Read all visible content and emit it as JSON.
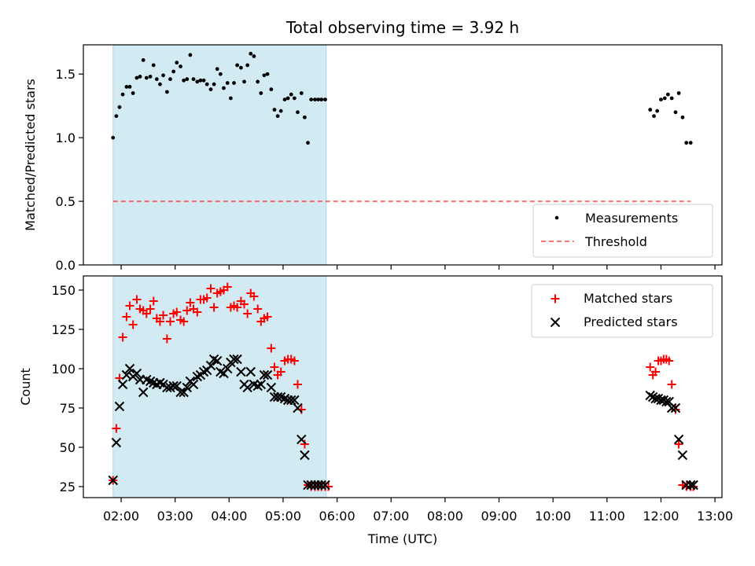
{
  "figure": {
    "title": "Total observing time = 3.92 h",
    "xlabel": "Time (UTC)",
    "x_ticks": [
      "02:00",
      "03:00",
      "04:00",
      "05:00",
      "06:00",
      "07:00",
      "08:00",
      "09:00",
      "10:00",
      "11:00",
      "12:00",
      "13:00"
    ],
    "x_tick_hours": [
      2,
      3,
      4,
      5,
      6,
      7,
      8,
      9,
      10,
      11,
      12,
      13
    ],
    "xlim": [
      1.3,
      13.13
    ],
    "shaded_span": [
      1.85,
      5.8
    ],
    "colors": {
      "shade": "#add8e6",
      "threshold": "#ff0000",
      "matched": "#ff0000",
      "predicted": "#000000",
      "measurements": "#000000"
    }
  },
  "chart_data": [
    {
      "type": "scatter",
      "ylabel": "Matched/Predicted stars",
      "ylim": [
        0,
        1.73
      ],
      "y_ticks": [
        0.0,
        0.5,
        1.0,
        1.5
      ],
      "y_tick_labels": [
        "0.0",
        "0.5",
        "1.0",
        "1.5"
      ],
      "legend_position": "lower right",
      "series": [
        {
          "name": "Measurements",
          "marker": "dot",
          "x": [
            1.85,
            1.91,
            1.97,
            2.03,
            2.1,
            2.16,
            2.22,
            2.29,
            2.35,
            2.41,
            2.47,
            2.54,
            2.6,
            2.66,
            2.72,
            2.78,
            2.85,
            2.91,
            2.97,
            3.03,
            3.1,
            3.16,
            3.22,
            3.28,
            3.34,
            3.41,
            3.47,
            3.53,
            3.59,
            3.66,
            3.72,
            3.78,
            3.84,
            3.9,
            3.97,
            4.03,
            4.09,
            4.15,
            4.22,
            4.28,
            4.34,
            4.4,
            4.46,
            4.53,
            4.59,
            4.65,
            4.71,
            4.78,
            4.84,
            4.9,
            4.96,
            5.03,
            5.09,
            5.15,
            5.21,
            5.27,
            5.34,
            5.4,
            5.46,
            5.52,
            5.59,
            5.65,
            5.71,
            5.78,
            11.8,
            11.87,
            11.93,
            12.0,
            12.07,
            12.13,
            12.2,
            12.27,
            12.33,
            12.4,
            12.47,
            12.55
          ],
          "y": [
            1.0,
            1.17,
            1.24,
            1.34,
            1.4,
            1.4,
            1.35,
            1.47,
            1.48,
            1.61,
            1.47,
            1.48,
            1.57,
            1.46,
            1.42,
            1.49,
            1.36,
            1.46,
            1.52,
            1.59,
            1.56,
            1.45,
            1.46,
            1.65,
            1.46,
            1.44,
            1.45,
            1.45,
            1.42,
            1.38,
            1.42,
            1.54,
            1.5,
            1.39,
            1.43,
            1.31,
            1.43,
            1.57,
            1.55,
            1.44,
            1.57,
            1.66,
            1.64,
            1.44,
            1.35,
            1.49,
            1.5,
            1.38,
            1.22,
            1.17,
            1.21,
            1.3,
            1.31,
            1.34,
            1.31,
            1.2,
            1.35,
            1.16,
            0.96,
            1.3,
            1.3,
            1.3,
            1.3,
            1.3,
            1.22,
            1.17,
            1.21,
            1.3,
            1.31,
            1.34,
            1.31,
            1.2,
            1.35,
            1.16,
            0.96,
            0.96
          ]
        },
        {
          "name": "Threshold",
          "line": "dashed",
          "x": [
            1.85,
            12.55
          ],
          "y": [
            0.5,
            0.5
          ]
        }
      ]
    },
    {
      "type": "scatter",
      "ylabel": "Count",
      "ylim": [
        18,
        159
      ],
      "y_ticks": [
        25,
        50,
        75,
        100,
        125,
        150
      ],
      "y_tick_labels": [
        "25",
        "50",
        "75",
        "100",
        "125",
        "150"
      ],
      "legend_position": "upper right",
      "series": [
        {
          "name": "Matched stars",
          "marker": "plus",
          "x": [
            1.85,
            1.91,
            1.97,
            2.03,
            2.1,
            2.16,
            2.22,
            2.29,
            2.35,
            2.41,
            2.47,
            2.54,
            2.6,
            2.66,
            2.72,
            2.78,
            2.85,
            2.91,
            2.97,
            3.03,
            3.1,
            3.16,
            3.22,
            3.28,
            3.34,
            3.41,
            3.47,
            3.53,
            3.59,
            3.66,
            3.72,
            3.78,
            3.84,
            3.9,
            3.97,
            4.03,
            4.09,
            4.15,
            4.22,
            4.28,
            4.34,
            4.4,
            4.46,
            4.53,
            4.59,
            4.65,
            4.71,
            4.78,
            4.84,
            4.9,
            4.96,
            5.03,
            5.09,
            5.15,
            5.21,
            5.27,
            5.34,
            5.4,
            5.46,
            5.52,
            5.59,
            5.65,
            5.71,
            5.78,
            5.84,
            11.8,
            11.85,
            11.9,
            11.95,
            12.0,
            12.05,
            12.1,
            12.15,
            12.2,
            12.27,
            12.33,
            12.4,
            12.47,
            12.55,
            12.6
          ],
          "y": [
            29,
            62,
            94,
            120,
            133,
            140,
            128,
            144,
            138,
            137,
            135,
            138,
            143,
            132,
            130,
            134,
            119,
            130,
            135,
            136,
            131,
            130,
            137,
            142,
            138,
            136,
            144,
            144,
            145,
            151,
            139,
            148,
            149,
            150,
            152,
            139,
            140,
            139,
            143,
            141,
            135,
            148,
            146,
            138,
            130,
            132,
            133,
            113,
            101,
            96,
            98,
            105,
            106,
            106,
            105,
            90,
            74,
            52,
            26,
            25,
            25,
            25,
            25,
            25,
            25,
            101,
            96,
            98,
            105,
            105,
            106,
            106,
            105,
            90,
            74,
            52,
            26,
            25,
            25,
            25
          ],
          "note_hidden_fix": ""
        },
        {
          "name": "Predicted stars",
          "marker": "x",
          "x": [
            1.85,
            1.91,
            1.97,
            2.03,
            2.1,
            2.16,
            2.22,
            2.29,
            2.35,
            2.41,
            2.47,
            2.54,
            2.6,
            2.66,
            2.72,
            2.78,
            2.85,
            2.91,
            2.97,
            3.03,
            3.1,
            3.16,
            3.22,
            3.28,
            3.34,
            3.41,
            3.47,
            3.53,
            3.59,
            3.66,
            3.72,
            3.78,
            3.84,
            3.9,
            3.97,
            4.03,
            4.09,
            4.15,
            4.22,
            4.28,
            4.34,
            4.4,
            4.46,
            4.53,
            4.59,
            4.65,
            4.71,
            4.78,
            4.84,
            4.9,
            4.96,
            5.03,
            5.09,
            5.15,
            5.21,
            5.27,
            5.34,
            5.4,
            5.46,
            5.52,
            5.59,
            5.65,
            5.71,
            5.78,
            11.8,
            11.85,
            11.9,
            11.95,
            12.0,
            12.05,
            12.1,
            12.15,
            12.2,
            12.27,
            12.33,
            12.4,
            12.47,
            12.55,
            12.6
          ],
          "y": [
            29,
            53,
            76,
            90,
            96,
            100,
            95,
            97,
            93,
            85,
            93,
            92,
            91,
            90,
            91,
            90,
            88,
            88,
            89,
            89,
            85,
            85,
            88,
            92,
            90,
            95,
            96,
            98,
            99,
            102,
            106,
            105,
            98,
            97,
            100,
            104,
            106,
            106,
            98,
            90,
            88,
            98,
            90,
            89,
            90,
            96,
            96,
            88,
            82,
            82,
            82,
            81,
            80,
            80,
            80,
            75,
            55,
            45,
            26,
            26,
            26,
            26,
            26,
            26,
            83,
            82,
            81,
            81,
            80,
            80,
            79,
            79,
            75,
            75,
            55,
            45,
            26,
            26,
            26
          ]
        }
      ]
    }
  ]
}
